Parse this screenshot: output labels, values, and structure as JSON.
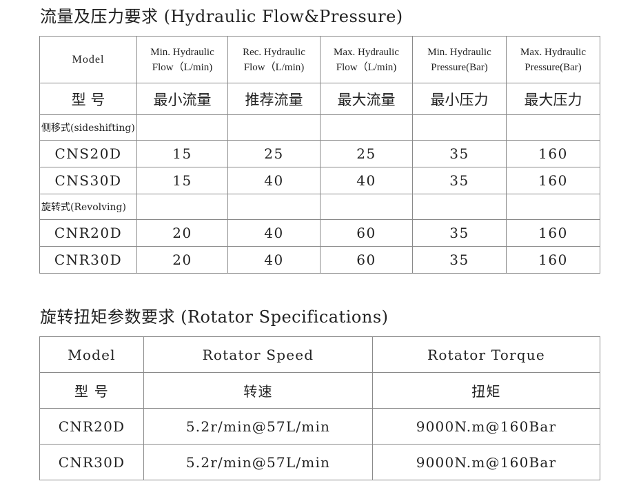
{
  "section1": {
    "title": "流量及压力要求 (Hydraulic Flow&Pressure)",
    "headers_en": [
      [
        "Model",
        ""
      ],
      [
        "Min. Hydraulic",
        "Flow（L/min)"
      ],
      [
        "Rec. Hydraulic",
        "Flow（L/min)"
      ],
      [
        "Max. Hydraulic",
        "Flow（L/min)"
      ],
      [
        "Min. Hydraulic",
        "Pressure(Bar)"
      ],
      [
        "Max. Hydraulic",
        "Pressure(Bar)"
      ]
    ],
    "headers_cn": [
      "型 号",
      "最小流量",
      "推荐流量",
      "最大流量",
      "最小压力",
      "最大压力"
    ],
    "groups": [
      {
        "label": "侧移式(sideshifting)",
        "rows": [
          [
            "CNS20D",
            "15",
            "25",
            "25",
            "35",
            "160"
          ],
          [
            "CNS30D",
            "15",
            "40",
            "40",
            "35",
            "160"
          ]
        ]
      },
      {
        "label": "旋转式(Revolving)",
        "rows": [
          [
            "CNR20D",
            "20",
            "40",
            "60",
            "35",
            "160"
          ],
          [
            "CNR30D",
            "20",
            "40",
            "60",
            "35",
            "160"
          ]
        ]
      }
    ]
  },
  "section2": {
    "title": "旋转扭矩参数要求 (Rotator Specifications)",
    "headers_en": [
      "Model",
      "Rotator Speed",
      "Rotator Torque"
    ],
    "headers_cn": [
      "型 号",
      "转速",
      "扭矩"
    ],
    "rows": [
      [
        "CNR20D",
        "5.2r/min@57L/min",
        "9000N.m@160Bar"
      ],
      [
        "CNR30D",
        "5.2r/min@57L/min",
        "9000N.m@160Bar"
      ]
    ]
  }
}
